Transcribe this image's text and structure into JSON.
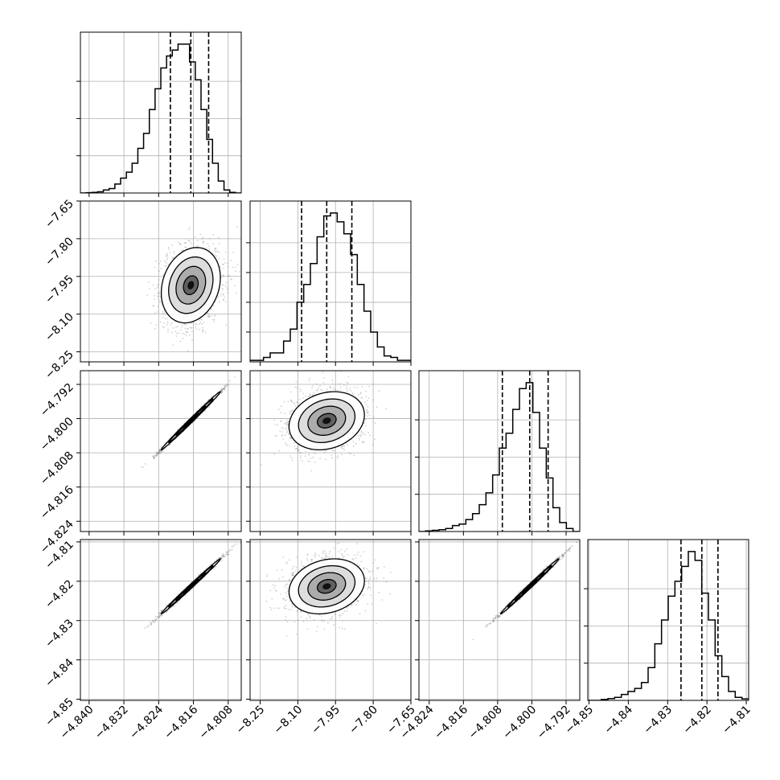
{
  "chart_data": {
    "type": "corner",
    "grid": true,
    "parameters": [
      {
        "range": [
          -4.842,
          -4.805
        ],
        "ticks": [
          -4.84,
          -4.832,
          -4.824,
          -4.816,
          -4.808
        ],
        "tick_labels": [
          "−4.840",
          "−4.832",
          "−4.824",
          "−4.816",
          "−4.808"
        ],
        "median": -4.8166,
        "q16": -4.8213,
        "q84": -4.8125,
        "hist": [
          0,
          0.002,
          0.004,
          0.008,
          0.02,
          0.03,
          0.06,
          0.1,
          0.14,
          0.2,
          0.3,
          0.4,
          0.56,
          0.7,
          0.84,
          0.92,
          0.96,
          1.0,
          1.0,
          0.88,
          0.76,
          0.56,
          0.36,
          0.2,
          0.08,
          0.02,
          0.004,
          0
        ],
        "hist_max": 1.08,
        "hist_ticks": [
          0.25,
          0.5,
          0.75
        ]
      },
      {
        "range": [
          -8.29,
          -7.65
        ],
        "ticks": [
          -8.25,
          -8.1,
          -7.95,
          -7.8,
          -7.65
        ],
        "tick_labels": [
          "−8.25",
          "−8.10",
          "−7.95",
          "−7.80",
          "−7.65"
        ],
        "median": -7.985,
        "q16": -8.085,
        "q84": -7.885,
        "hist": [
          0.01,
          0.01,
          0.03,
          0.06,
          0.06,
          0.14,
          0.22,
          0.4,
          0.52,
          0.66,
          0.84,
          0.98,
          1.0,
          0.94,
          0.86,
          0.72,
          0.52,
          0.34,
          0.2,
          0.1,
          0.04,
          0.03,
          0.01,
          0.01
        ],
        "hist_max": 1.08,
        "hist_ticks": [
          0.2,
          0.4,
          0.6,
          0.8
        ]
      },
      {
        "range": [
          -4.8264,
          -4.7888
        ],
        "ticks": [
          -4.824,
          -4.816,
          -4.808,
          -4.8,
          -4.792
        ],
        "tick_labels": [
          "−4.824",
          "−4.816",
          "−4.808",
          "−4.800",
          "−4.792"
        ],
        "median": -4.8005,
        "q16": -4.8069,
        "q84": -4.7962,
        "hist": [
          0,
          0.004,
          0.008,
          0.012,
          0.02,
          0.04,
          0.05,
          0.08,
          0.12,
          0.18,
          0.26,
          0.38,
          0.56,
          0.66,
          0.82,
          0.96,
          1.0,
          0.8,
          0.56,
          0.36,
          0.16,
          0.06,
          0.02,
          0
        ],
        "hist_max": 1.08,
        "hist_ticks": [
          0.25,
          0.5,
          0.75
        ]
      },
      {
        "range": [
          -4.8503,
          -4.8094
        ],
        "ticks": [
          -4.85,
          -4.84,
          -4.83,
          -4.82,
          -4.81
        ],
        "tick_labels": [
          "−4.85",
          "−4.84",
          "−4.83",
          "−4.82",
          "−4.81"
        ],
        "median": -4.8213,
        "q16": -4.8266,
        "q84": -4.8172,
        "hist": [
          0,
          0,
          0.006,
          0.012,
          0.02,
          0.04,
          0.06,
          0.08,
          0.12,
          0.22,
          0.38,
          0.54,
          0.7,
          0.8,
          0.9,
          1.0,
          0.94,
          0.72,
          0.54,
          0.3,
          0.16,
          0.06,
          0.02,
          0.01
        ],
        "hist_max": 1.08,
        "hist_ticks": [
          0.25,
          0.5,
          0.75
        ]
      }
    ],
    "pairs": [
      {
        "row": 1,
        "col": 0,
        "mean": [
          -4.8166,
          -7.985
        ],
        "sd": [
          0.0034,
          0.075
        ],
        "rho": 0.2
      },
      {
        "row": 2,
        "col": 0,
        "mean": [
          -4.8166,
          -4.8005
        ],
        "sd": [
          0.0034,
          0.0034
        ],
        "rho": 0.996
      },
      {
        "row": 2,
        "col": 1,
        "mean": [
          -7.985,
          -4.8005
        ],
        "sd": [
          0.075,
          0.0034
        ],
        "rho": 0.2
      },
      {
        "row": 3,
        "col": 0,
        "mean": [
          -4.8166,
          -4.8213
        ],
        "sd": [
          0.0034,
          0.0035
        ],
        "rho": 0.996
      },
      {
        "row": 3,
        "col": 1,
        "mean": [
          -7.985,
          -4.8213
        ],
        "sd": [
          0.075,
          0.0035
        ],
        "rho": 0.2
      },
      {
        "row": 3,
        "col": 2,
        "mean": [
          -4.8005,
          -4.8213
        ],
        "sd": [
          0.0034,
          0.0035
        ],
        "rho": 0.996
      }
    ]
  },
  "colors": {
    "line": "#000000",
    "grid": "#b0b0b0",
    "scatter": "#7f7f7f"
  }
}
